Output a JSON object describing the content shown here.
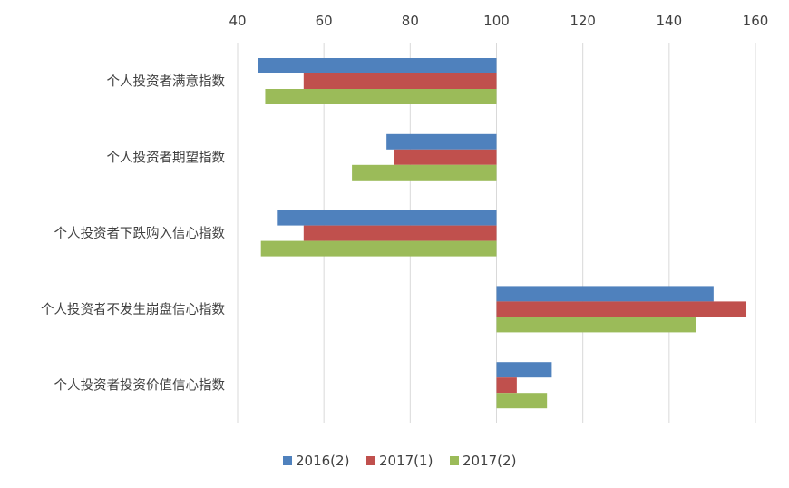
{
  "chart_data": {
    "type": "bar",
    "orientation": "horizontal",
    "title": "",
    "xlabel": "",
    "ylabel": "",
    "xlim": [
      40,
      160
    ],
    "x_ticks": [
      40,
      60,
      80,
      100,
      120,
      140,
      160
    ],
    "baseline": 100,
    "grid": "vertical",
    "legend_position": "bottom",
    "categories": [
      "个人投资者满意指数",
      "个人投资者期望指数",
      "个人投资者下跌购入信心指数",
      "个人投资者不发生崩盘信心指数",
      "个人投资者投资价值信心指数"
    ],
    "series": [
      {
        "name": "2016(2)",
        "color": "#4f81bd",
        "values": [
          44.7,
          74.5,
          49.1,
          150.3,
          112.8
        ]
      },
      {
        "name": "2017(1)",
        "color": "#c0504d",
        "values": [
          55.3,
          76.3,
          55.3,
          157.9,
          104.7
        ]
      },
      {
        "name": "2017(2)",
        "color": "#9bbb59",
        "values": [
          46.4,
          66.5,
          45.4,
          146.3,
          111.7
        ]
      }
    ]
  }
}
